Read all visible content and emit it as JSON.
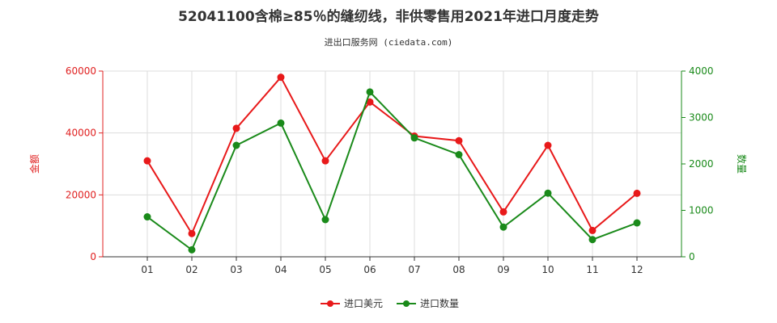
{
  "title": "52041100含棉≥85％的缝纫线，非供零售用2021年进口月度走势",
  "subtitle": "进出口服务网 (ciedata.com)",
  "chart_data": {
    "type": "line",
    "categories": [
      "01",
      "02",
      "03",
      "04",
      "05",
      "06",
      "07",
      "08",
      "09",
      "10",
      "11",
      "12"
    ],
    "y_left": {
      "label": "金额",
      "ticks": [
        "0",
        "20000",
        "40000",
        "60000"
      ],
      "range": [
        0,
        60000
      ],
      "color": "#e02020"
    },
    "y_right": {
      "label": "数量",
      "ticks": [
        "0",
        "1000",
        "2000",
        "3000",
        "4000"
      ],
      "range": [
        0,
        4000
      ],
      "color": "#1a8a1a"
    },
    "grid": true,
    "legend_position": "bottom-center",
    "series": [
      {
        "name": "进口美元",
        "axis": "left",
        "color": "#e8191a",
        "values": [
          31000,
          7500,
          41500,
          58000,
          31000,
          50000,
          39000,
          37500,
          14500,
          36000,
          8500,
          20500
        ]
      },
      {
        "name": "进口数量",
        "axis": "right",
        "color": "#1a8a1a",
        "values": [
          860,
          150,
          2400,
          2880,
          800,
          3550,
          2560,
          2200,
          640,
          1370,
          370,
          730
        ]
      }
    ]
  }
}
